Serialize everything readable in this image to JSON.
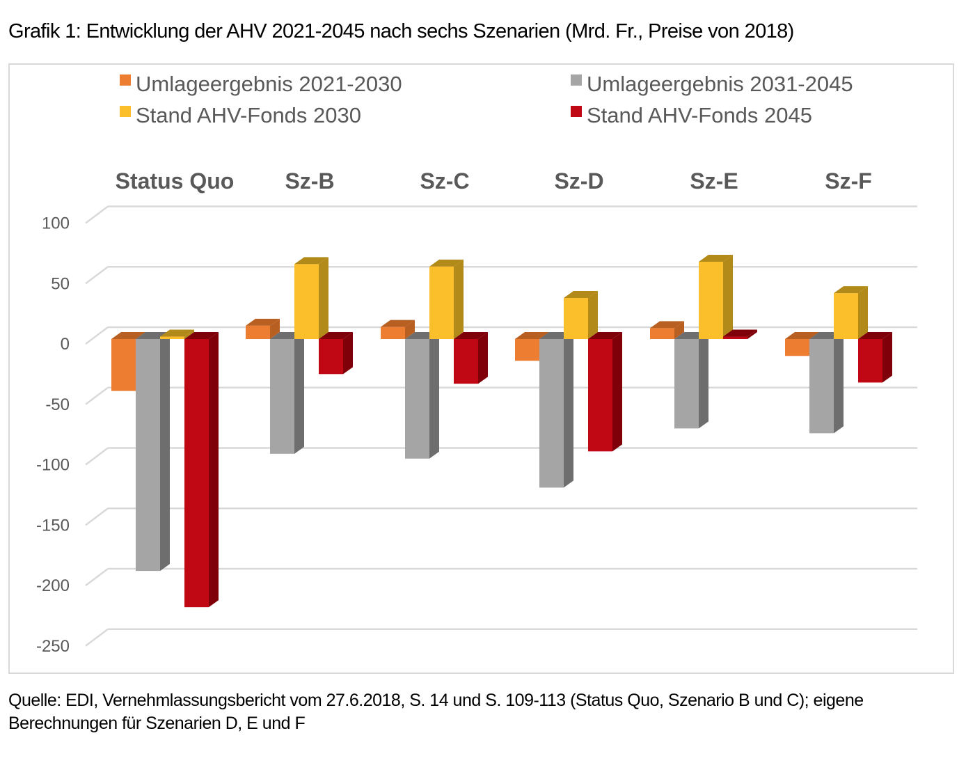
{
  "title": "Grafik 1: Entwicklung der AHV 2021-2045 nach sechs Szenarien (Mrd. Fr., Preise von 2018)",
  "source": "Quelle: EDI, Vernehmlassungsbericht vom 27.6.2018, S. 14 und S. 109-113 (Status Quo, Szenario B und C); eigene Berechnungen für Szenarien D, E und F",
  "chart_data": {
    "type": "bar",
    "style": "3d-clustered-column",
    "title": "Grafik 1: Entwicklung der AHV 2021-2045 nach sechs Szenarien (Mrd. Fr., Preise von 2018)",
    "xlabel": "",
    "ylabel": "",
    "categories": [
      "Status Quo",
      "Sz-B",
      "Sz-C",
      "Sz-D",
      "Sz-E",
      "Sz-F"
    ],
    "category_axis_position": "top",
    "ylim": [
      -250,
      100
    ],
    "yticks": [
      100,
      50,
      0,
      -50,
      -100,
      -150,
      -200,
      -250
    ],
    "ytick_labels": [
      "100",
      "50",
      "0",
      "-50",
      "-100",
      "-150",
      "-200",
      "-250"
    ],
    "grid": true,
    "legend_position": "top",
    "series": [
      {
        "name": "Umlageergebnis 2021-2030",
        "color": "#ED7D31",
        "side_color": "#B85F22",
        "values": [
          -43,
          11,
          10,
          -18,
          9,
          -14
        ]
      },
      {
        "name": "Umlageergebnis 2031-2045",
        "color": "#A5A5A5",
        "side_color": "#6E6E6E",
        "values": [
          -192,
          -95,
          -99,
          -123,
          -74,
          -78
        ]
      },
      {
        "name": "Stand AHV-Fonds 2030",
        "color": "#FBBF2C",
        "side_color": "#B28A1A",
        "values": [
          2,
          62,
          60,
          34,
          64,
          38
        ]
      },
      {
        "name": "Stand AHV-Fonds 2045",
        "color": "#C00815",
        "side_color": "#7F0009",
        "values": [
          -222,
          -29,
          -37,
          -93,
          2,
          -36
        ]
      }
    ]
  }
}
